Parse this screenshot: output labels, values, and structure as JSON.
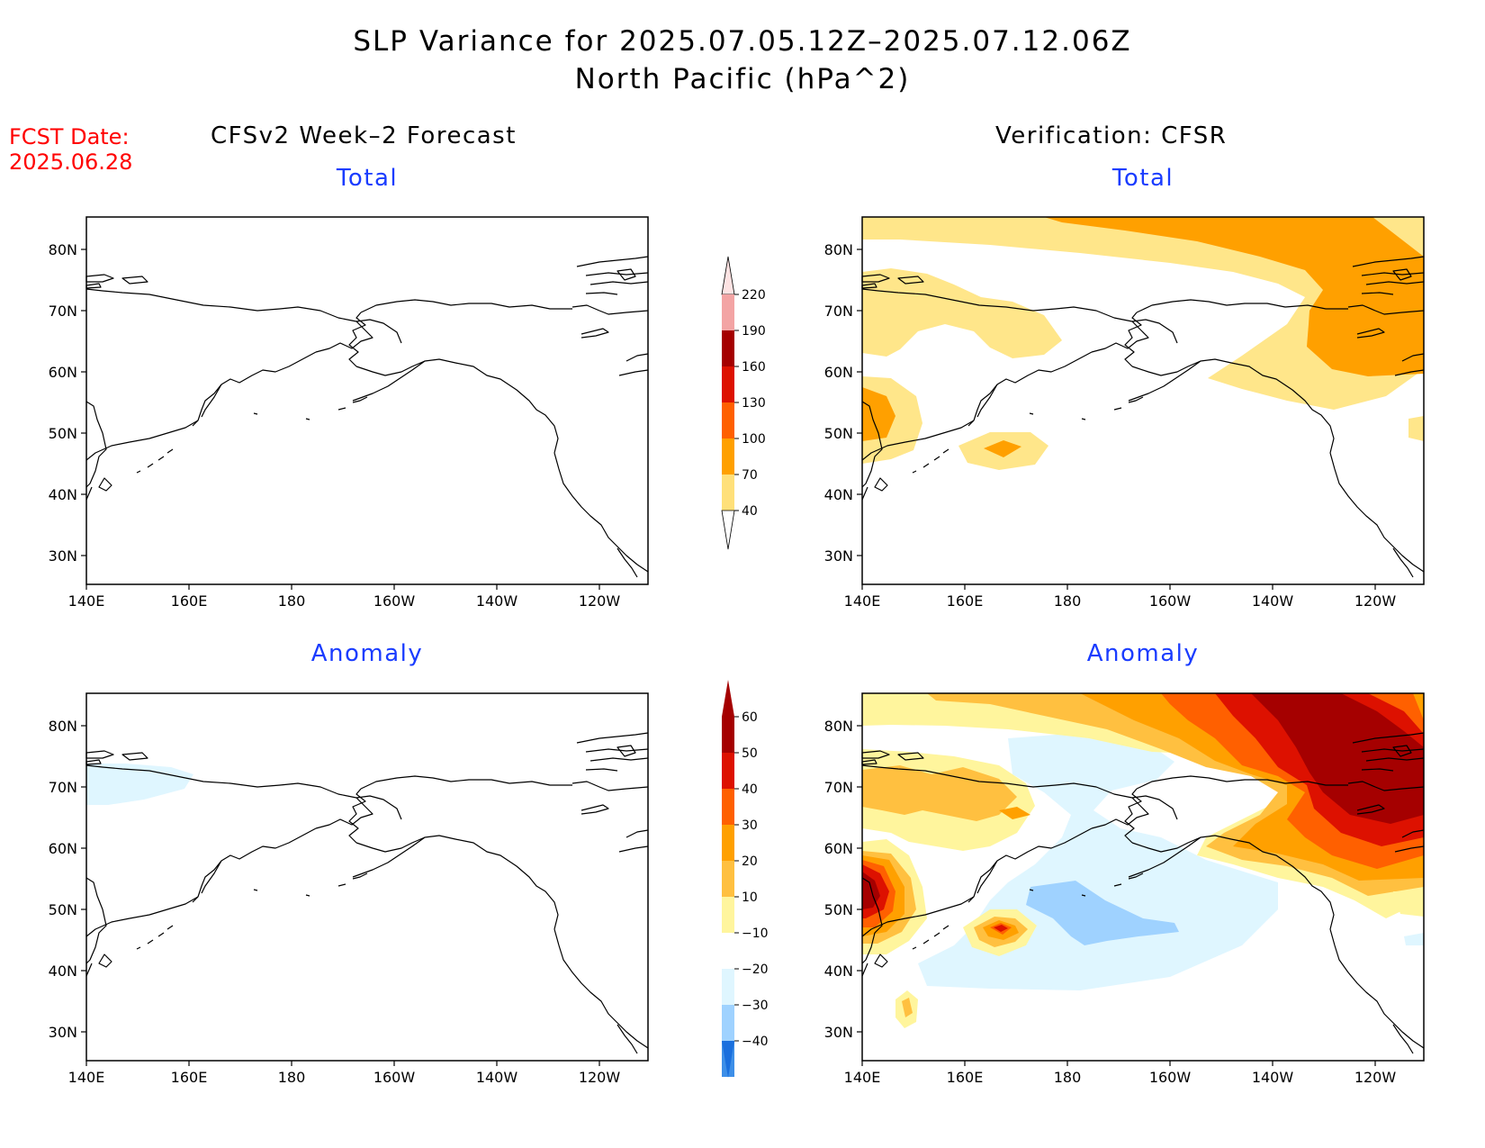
{
  "header": {
    "title_line1": "SLP Variance for 2025.07.05.12Z–2025.07.12.06Z",
    "title_line2": "North Pacific (hPa^2)"
  },
  "fcst": {
    "line1": "FCST Date:",
    "line2": "2025.06.28"
  },
  "columns": {
    "left": "CFSv2 Week–2 Forecast",
    "right": "Verification: CFSR"
  },
  "panel_titles": {
    "total": "Total",
    "anomaly": "Anomaly"
  },
  "axes": {
    "lat_labels": [
      "80N",
      "70N",
      "60N",
      "50N",
      "40N",
      "30N"
    ],
    "lon_labels": [
      "140E",
      "160E",
      "180",
      "160W",
      "140W",
      "120W"
    ]
  },
  "colorbar_total": {
    "labels": [
      "220",
      "190",
      "160",
      "130",
      "100",
      "70",
      "40"
    ],
    "colors": [
      "#f3a4a4",
      "#a50000",
      "#dd1100",
      "#ff6000",
      "#ffa000",
      "#ffe07a"
    ]
  },
  "colorbar_anomaly": {
    "labels": [
      "60",
      "50",
      "40",
      "30",
      "20",
      "10",
      "−10",
      "−20",
      "−30",
      "−40"
    ],
    "colors": [
      "#a50000",
      "#dd1100",
      "#ff6000",
      "#ffa000",
      "#ffc040",
      "#fff59d",
      "#ffffff",
      "#dff6ff",
      "#9fd2ff",
      "#3d8fe8",
      "#1a6fdd"
    ]
  },
  "map_colors": {
    "v40": "#ffe68a",
    "v70": "#ffa000",
    "v100": "#ff6000",
    "a_neg10": "#dff6ff",
    "a_neg20": "#9fd2ff",
    "a10": "#fff59d",
    "a20": "#ffc040",
    "a30": "#ffa000",
    "a40": "#ff6000",
    "a50": "#dd1100",
    "a60": "#a50000"
  }
}
